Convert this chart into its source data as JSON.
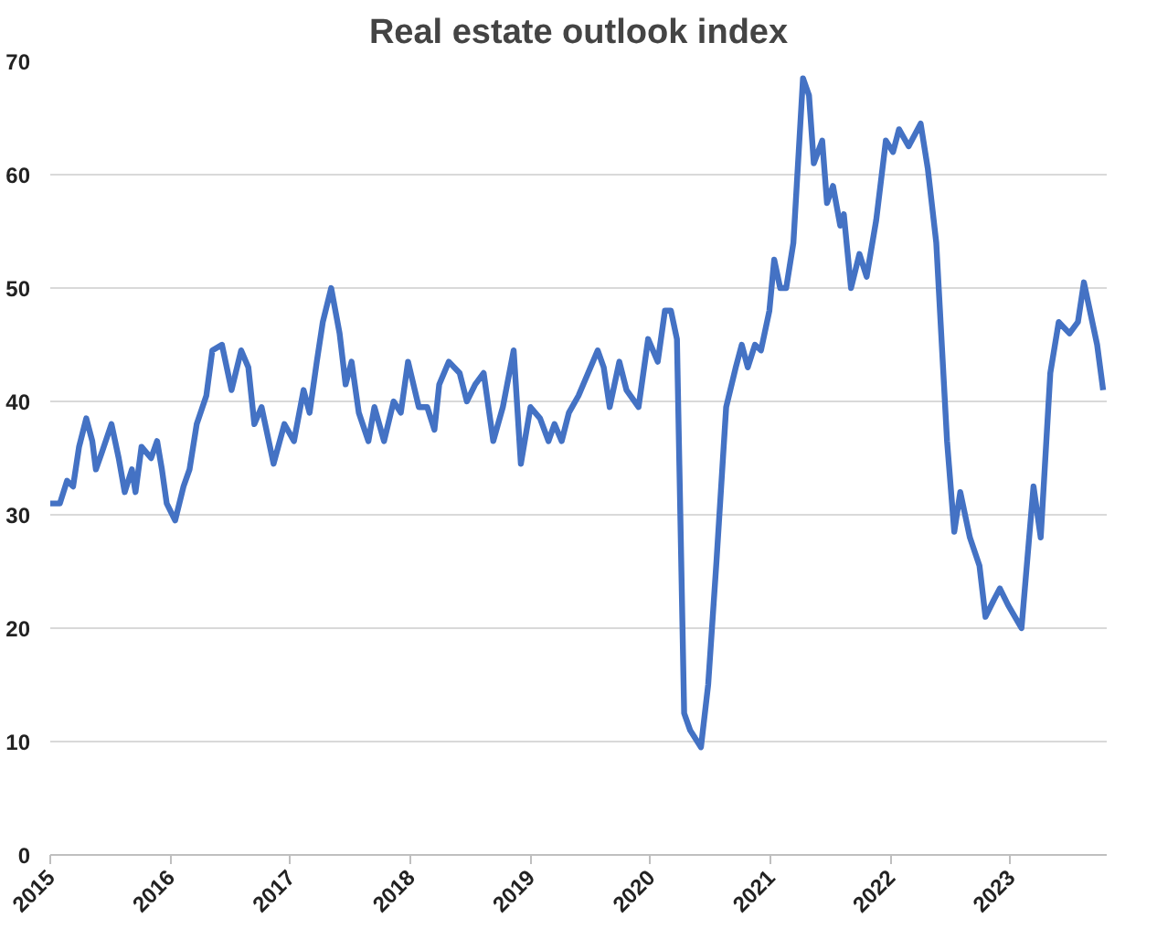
{
  "chart_data": {
    "type": "line",
    "title": "Real estate outlook index",
    "x": [
      2015.0,
      2015.08,
      2015.14,
      2015.19,
      2015.24,
      2015.3,
      2015.35,
      2015.38,
      2015.43,
      2015.51,
      2015.57,
      2015.62,
      2015.68,
      2015.71,
      2015.76,
      2015.84,
      2015.89,
      2015.93,
      2015.97,
      2016.04,
      2016.11,
      2016.16,
      2016.22,
      2016.3,
      2016.35,
      2016.43,
      2016.51,
      2016.59,
      2016.65,
      2016.7,
      2016.76,
      2016.81,
      2016.86,
      2016.95,
      2017.03,
      2017.11,
      2017.16,
      2017.22,
      2017.27,
      2017.34,
      2017.41,
      2017.46,
      2017.51,
      2017.57,
      2017.65,
      2017.7,
      2017.78,
      2017.86,
      2017.92,
      2017.98,
      2018.07,
      2018.14,
      2018.2,
      2018.24,
      2018.32,
      2018.41,
      2018.47,
      2018.54,
      2018.61,
      2018.69,
      2018.77,
      2018.86,
      2018.92,
      2019.0,
      2019.08,
      2019.15,
      2019.2,
      2019.26,
      2019.32,
      2019.4,
      2019.48,
      2019.56,
      2019.61,
      2019.66,
      2019.74,
      2019.8,
      2019.9,
      2019.98,
      2020.06,
      2020.12,
      2020.17,
      2020.22,
      2020.28,
      2020.33,
      2020.42,
      2020.48,
      2020.55,
      2020.63,
      2020.71,
      2020.76,
      2020.81,
      2020.87,
      2020.92,
      2020.99,
      2021.03,
      2021.08,
      2021.13,
      2021.19,
      2021.27,
      2021.32,
      2021.36,
      2021.43,
      2021.47,
      2021.52,
      2021.58,
      2021.61,
      2021.67,
      2021.74,
      2021.8,
      2021.88,
      2021.96,
      2022.02,
      2022.07,
      2022.15,
      2022.25,
      2022.31,
      2022.38,
      2022.47,
      2022.53,
      2022.58,
      2022.66,
      2022.74,
      2022.79,
      2022.86,
      2022.91,
      2022.98,
      2023.09,
      2023.15,
      2023.19,
      2023.25,
      2023.33,
      2023.4,
      2023.49,
      2023.56,
      2023.61,
      2023.67,
      2023.72,
      2023.77
    ],
    "series": [
      {
        "color": "#4472c4",
        "values": [
          31,
          31,
          33,
          32.5,
          36,
          38.5,
          36.5,
          34,
          35.5,
          38,
          35,
          32,
          34,
          32,
          36,
          35,
          36.5,
          34,
          31,
          29.5,
          32.5,
          34,
          38,
          40.5,
          44.5,
          45,
          41,
          44.5,
          43,
          38,
          39.5,
          37,
          34.5,
          38,
          36.5,
          41,
          39,
          43.5,
          47,
          50,
          46,
          41.5,
          43.5,
          39,
          36.5,
          39.5,
          36.5,
          40,
          39,
          43.5,
          39.5,
          39.5,
          37.5,
          41.5,
          43.5,
          42.5,
          40,
          41.5,
          42.5,
          36.5,
          39.5,
          44.5,
          34.5,
          39.5,
          38.5,
          36.5,
          38,
          36.5,
          39,
          40.5,
          42.5,
          44.5,
          43,
          39.5,
          43.5,
          41,
          39.5,
          45.5,
          43.5,
          48,
          48,
          45.5,
          12.5,
          11,
          9.5,
          15,
          26,
          39.5,
          43,
          45,
          43,
          45,
          44.5,
          48,
          52.5,
          50,
          50,
          54,
          68.5,
          67,
          61,
          63,
          57.5,
          59,
          55.5,
          56.5,
          50,
          53,
          51,
          56,
          63,
          62,
          64,
          62.5,
          64.5,
          60.5,
          54,
          36.5,
          28.5,
          32,
          28,
          25.5,
          21,
          22.5,
          23.5,
          22,
          20,
          27.5,
          32.5,
          28,
          42.5,
          47,
          46,
          47,
          50.5,
          47.5,
          45,
          41
        ]
      }
    ],
    "xlim": [
      2015,
      2023.8
    ],
    "xticks": [
      2015,
      2016,
      2017,
      2018,
      2019,
      2020,
      2021,
      2022,
      2023
    ],
    "ylim": [
      0,
      70
    ],
    "yticks": [
      0,
      10,
      20,
      30,
      40,
      50,
      60,
      70
    ],
    "grid": "y",
    "marker": "none",
    "line_style": "solid"
  }
}
